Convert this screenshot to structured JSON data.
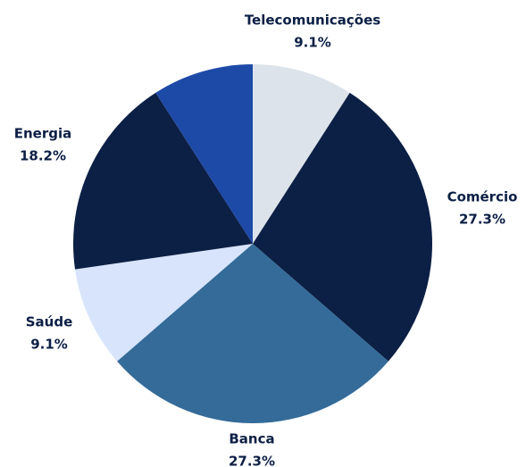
{
  "chart_data": {
    "type": "pie",
    "categories": [
      "Telecomunicações",
      "Comércio",
      "Banca",
      "Saúde",
      "Energia",
      null
    ],
    "values": [
      9.1,
      27.3,
      27.3,
      9.1,
      18.2,
      9.1
    ],
    "value_labels": [
      "9.1%",
      "27.3%",
      "27.3%",
      "9.1%",
      "18.2%",
      null
    ],
    "colors": [
      "#dce3ea",
      "#0c1f45",
      "#346b99",
      "#d7e4fb",
      "#0c1f45",
      "#1e4aa7"
    ]
  }
}
